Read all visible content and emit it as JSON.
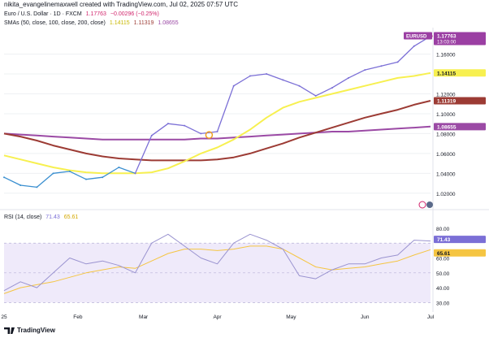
{
  "header": {
    "attribution": "nikita_evangelinemaxwell created with TradingView.com, Jul 02, 2025 07:57 UTC"
  },
  "legend_main": {
    "title": "Euro / U.S. Dollar · 1D · FXCM",
    "price": "1.17763",
    "change": "−0.00296 (−0.25%)"
  },
  "legend_sma": {
    "label": "SMAs (50, close, 100, close, 200, close)",
    "v50": "1.14115",
    "v100": "1.11319",
    "v200": "1.08655"
  },
  "legend_rsi": {
    "label": "RSI (14, close)",
    "v1": "71.43",
    "v2": "65.61"
  },
  "badges": {
    "symbol": "EURUSD",
    "price": "1.17763",
    "countdown": "13:03:00",
    "sma50": "1.14115",
    "sma100": "1.11319",
    "sma200": "1.08655",
    "rsi": "71.43",
    "rsi_ma": "65.61"
  },
  "footer": {
    "brand": "TradingView"
  },
  "colors": {
    "price": "#7b6fd6",
    "price_early": "#3a8fd0",
    "sma50": "#f7f050",
    "sma100": "#9c3b34",
    "sma200": "#9b4aa5",
    "rsi": "#9a93d0",
    "rsi_ma": "#f5c542",
    "rsi_band": "#efeafa",
    "grid": "#eef0f3",
    "axis_text": "#131722"
  },
  "chart_data": [
    {
      "type": "line",
      "title": "Euro / U.S. Dollar · 1D · FXCM",
      "x": [
        "2024-12-31",
        "2025-01-07",
        "2025-01-14",
        "2025-01-21",
        "2025-01-28",
        "2025-02-04",
        "2025-02-11",
        "2025-02-18",
        "2025-02-25",
        "2025-03-04",
        "2025-03-11",
        "2025-03-18",
        "2025-03-25",
        "2025-04-01",
        "2025-04-08",
        "2025-04-15",
        "2025-04-22",
        "2025-04-29",
        "2025-05-06",
        "2025-05-13",
        "2025-05-20",
        "2025-05-27",
        "2025-06-03",
        "2025-06-10",
        "2025-06-17",
        "2025-06-24",
        "2025-07-01"
      ],
      "x_ticks": [
        "25",
        "Feb",
        "Mar",
        "Apr",
        "May",
        "Jun",
        "Jul"
      ],
      "y_ticks": [
        "1.02000",
        "1.04000",
        "1.06000",
        "1.08000",
        "1.10000",
        "1.12000",
        "1.14000",
        "1.16000"
      ],
      "ylim": [
        1.01,
        1.185
      ],
      "series": [
        {
          "name": "EURUSD",
          "values": [
            1.036,
            1.028,
            1.026,
            1.04,
            1.042,
            1.034,
            1.036,
            1.046,
            1.04,
            1.078,
            1.09,
            1.088,
            1.08,
            1.082,
            1.128,
            1.138,
            1.14,
            1.134,
            1.128,
            1.118,
            1.126,
            1.136,
            1.144,
            1.148,
            1.152,
            1.168,
            1.178
          ]
        },
        {
          "name": "SMA 50",
          "values": [
            1.058,
            1.054,
            1.05,
            1.046,
            1.043,
            1.041,
            1.04,
            1.04,
            1.04,
            1.041,
            1.045,
            1.052,
            1.06,
            1.066,
            1.074,
            1.084,
            1.096,
            1.106,
            1.112,
            1.116,
            1.12,
            1.124,
            1.128,
            1.132,
            1.136,
            1.138,
            1.141
          ]
        },
        {
          "name": "SMA 100",
          "values": [
            1.08,
            1.077,
            1.073,
            1.068,
            1.064,
            1.06,
            1.057,
            1.055,
            1.054,
            1.053,
            1.053,
            1.053,
            1.053,
            1.054,
            1.056,
            1.06,
            1.065,
            1.07,
            1.076,
            1.081,
            1.086,
            1.091,
            1.096,
            1.1,
            1.104,
            1.109,
            1.113
          ]
        },
        {
          "name": "SMA 200",
          "values": [
            1.08,
            1.079,
            1.078,
            1.077,
            1.076,
            1.075,
            1.074,
            1.074,
            1.074,
            1.074,
            1.074,
            1.074,
            1.075,
            1.075,
            1.076,
            1.077,
            1.078,
            1.079,
            1.08,
            1.081,
            1.082,
            1.082,
            1.083,
            1.084,
            1.085,
            1.086,
            1.087
          ]
        }
      ]
    },
    {
      "type": "line",
      "title": "RSI (14, close)",
      "x": [
        "2024-12-31",
        "2025-01-07",
        "2025-01-14",
        "2025-01-21",
        "2025-01-28",
        "2025-02-04",
        "2025-02-11",
        "2025-02-18",
        "2025-02-25",
        "2025-03-04",
        "2025-03-11",
        "2025-03-18",
        "2025-03-25",
        "2025-04-01",
        "2025-04-08",
        "2025-04-15",
        "2025-04-22",
        "2025-04-29",
        "2025-05-06",
        "2025-05-13",
        "2025-05-20",
        "2025-05-27",
        "2025-06-03",
        "2025-06-10",
        "2025-06-17",
        "2025-06-24",
        "2025-07-01"
      ],
      "y_ticks": [
        "30.00",
        "40.00",
        "50.00",
        "60.00",
        "80.00"
      ],
      "ylim": [
        28,
        86
      ],
      "band": [
        30,
        70
      ],
      "series": [
        {
          "name": "RSI",
          "values": [
            38,
            44,
            40,
            50,
            60,
            56,
            58,
            55,
            50,
            70,
            76,
            68,
            60,
            56,
            70,
            76,
            72,
            66,
            48,
            46,
            52,
            56,
            56,
            60,
            62,
            72,
            71.43
          ]
        },
        {
          "name": "RSI MA",
          "values": [
            36,
            40,
            42,
            44,
            47,
            50,
            52,
            54,
            53,
            58,
            63,
            66,
            66,
            65,
            66,
            68,
            68,
            66,
            60,
            54,
            52,
            53,
            54,
            56,
            58,
            62,
            65.61
          ]
        }
      ]
    }
  ]
}
